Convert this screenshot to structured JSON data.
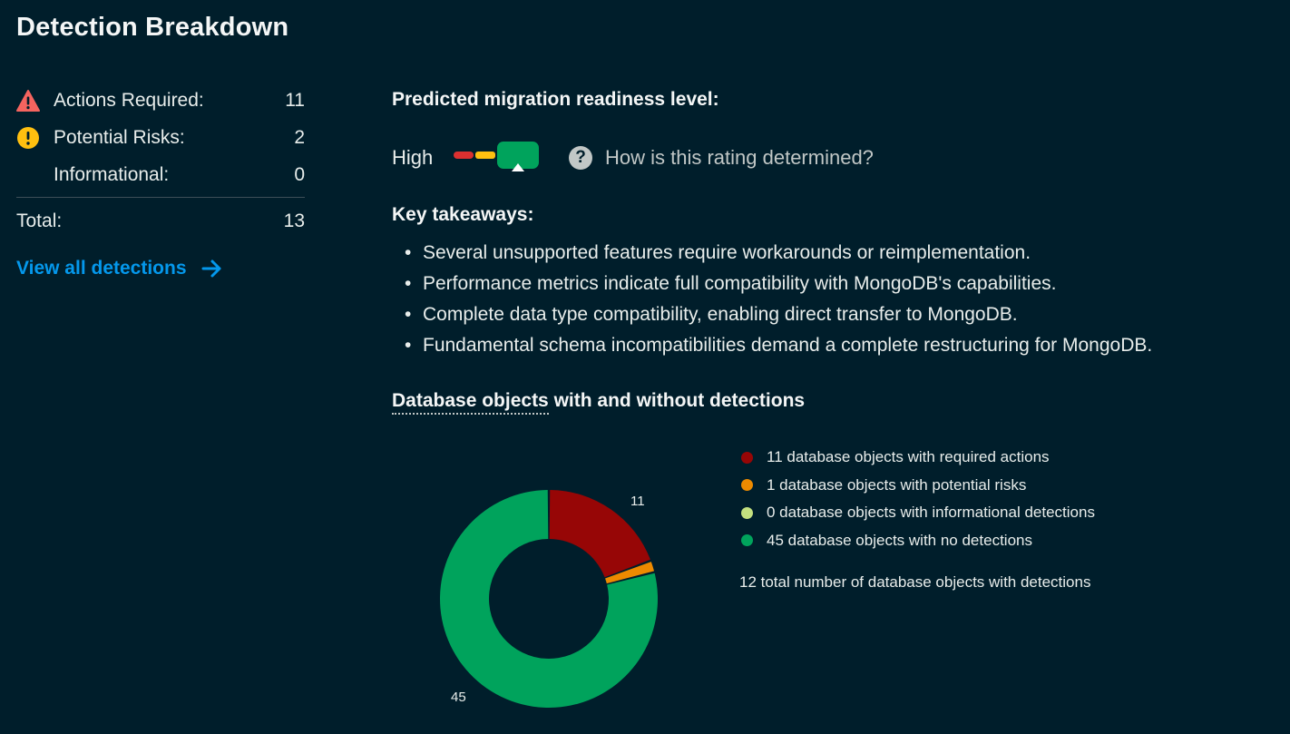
{
  "title": "Detection Breakdown",
  "summary": {
    "rows": [
      {
        "label": "Actions Required:",
        "value": "11",
        "icon": "warning-triangle-icon",
        "color": "#f4645f"
      },
      {
        "label": "Potential Risks:",
        "value": "2",
        "icon": "important-circle-icon",
        "color": "#ffc010"
      },
      {
        "label": "Informational:",
        "value": "0",
        "icon": "",
        "color": ""
      }
    ],
    "total_label": "Total:",
    "total_value": "13",
    "view_all": "View all detections"
  },
  "readiness": {
    "heading": "Predicted migration readiness level:",
    "level": "High",
    "help_text": "How is this rating determined?",
    "help_icon": "?",
    "meter_colors": [
      "#db3030",
      "#ffc010",
      "#00a35c"
    ]
  },
  "takeaways": {
    "heading": "Key takeaways:",
    "items": [
      "Several unsupported features require workarounds or reimplementation.",
      "Performance metrics indicate full compatibility with MongoDB's capabilities.",
      "Complete data type compatibility, enabling direct transfer to MongoDB.",
      "Fundamental schema incompatibilities demand a complete restructuring for MongoDB."
    ]
  },
  "db_objects": {
    "heading_link": "Database objects",
    "heading_rest": " with and without detections",
    "total_note": "12 total number of database objects with detections"
  },
  "chart_data": {
    "type": "pie",
    "subtype": "donut",
    "series": [
      {
        "name": "11 database objects with required actions",
        "value": 11,
        "color": "#970606",
        "label": "11"
      },
      {
        "name": "1 database objects with potential risks",
        "value": 1,
        "color": "#ed8a00",
        "label": ""
      },
      {
        "name": "0 database objects with informational detections",
        "value": 0,
        "color": "#c3e07f",
        "label": ""
      },
      {
        "name": "45 database objects with no detections",
        "value": 45,
        "color": "#00a35c",
        "label": "45"
      }
    ],
    "legend_position": "right"
  }
}
